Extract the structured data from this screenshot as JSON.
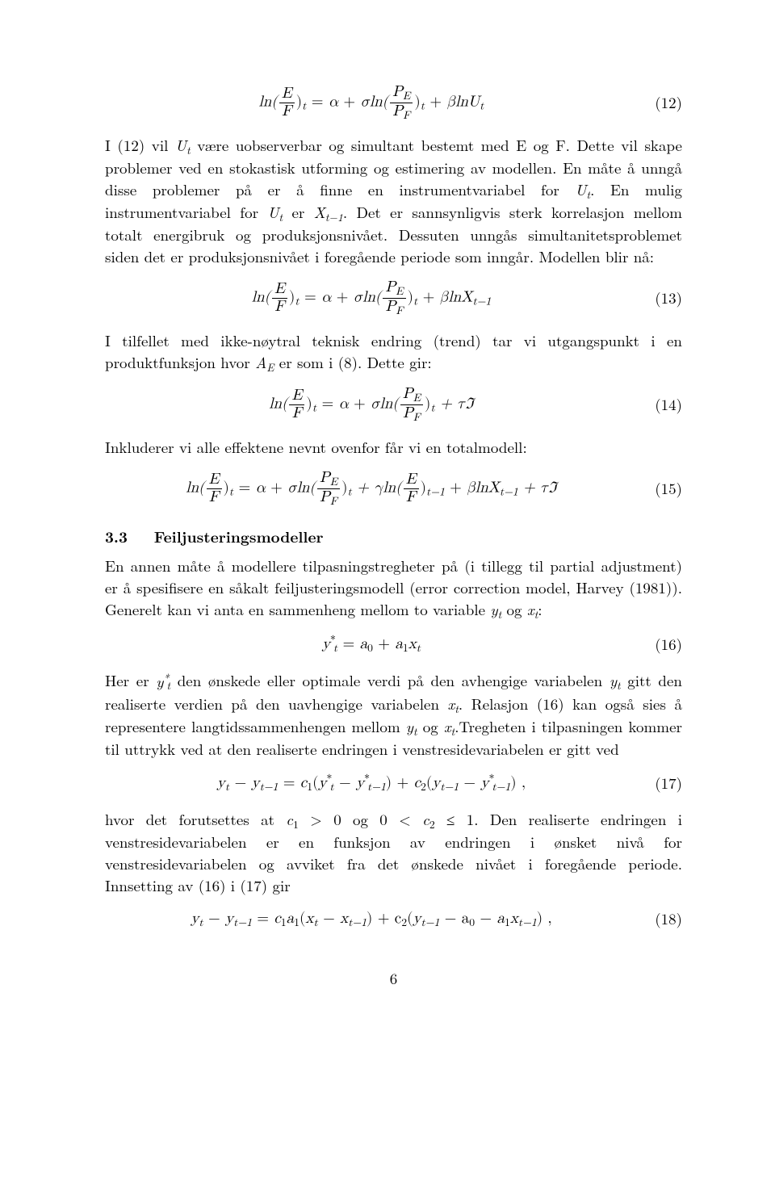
{
  "equations": {
    "eq12": {
      "number": "(12)",
      "lhs_fn": "ln(",
      "frac1_num": "E",
      "frac1_den": "F",
      "close_sub_t": ")",
      "eq_sign": " = ",
      "alpha": "α",
      "plus1": " + ",
      "sigma_ln": "σln(",
      "frac2_num_P": "P",
      "frac2_num_sub": "E",
      "frac2_den_P": "P",
      "frac2_den_sub": "F",
      "plus2": " + ",
      "beta_ln_U": "βlnU",
      "sub_t": "t"
    },
    "eq13": {
      "number": "(13)",
      "beta_ln_X": "βlnX",
      "sub_tminus1": "t−1"
    },
    "eq14": {
      "number": "(14)",
      "plus_tau_im": " + τℑ"
    },
    "eq15": {
      "number": "(15)",
      "gamma_ln": " + γln("
    },
    "eq16": {
      "number": "(16)",
      "body_lhs_y": "y",
      "star": "*",
      "eq_sign": " = ",
      "a0": "a",
      "sub0": "0",
      "plus": " + ",
      "a1": "a",
      "sub1": "1",
      "x_t": "x",
      "sub_t": "t"
    },
    "eq17": {
      "number": "(17)",
      "y_t": "y",
      "minus1": " − ",
      "y_tminus1": "y",
      "eq_sign": " = ",
      "c1": "c",
      "lpar": "(",
      "rpar_plus_c2": ") + ",
      "c2": "c",
      "space_comma": " ,"
    },
    "eq18": {
      "number": "(18)",
      "rhs_prefix": "c",
      "a1": "a",
      "lpar": "(",
      "x_t": "x",
      "minus": " − ",
      "x_tminus1": "x",
      "rpar_plus_c2_lpar": ") + c",
      "y_tminus1": "y",
      "minus_a0_minus_a1": " − a",
      "rpar_comma": ") ,"
    }
  },
  "paragraphs": {
    "p1_a": "I (12) vil ",
    "p1_Ut": "U",
    "p1_b": " være uobserverbar og simultant bestemt med E og F. Dette vil skape problemer ved en stokastisk utforming og estimering av modellen. En måte å unngå disse problemer på er å finne en instrumentvariabel for ",
    "p1_c": ". En mulig instrumentvariabel for ",
    "p1_d": " er ",
    "p1_Xtminus1": "X",
    "p1_e": ". Det er sannsynligvis sterk korrelasjon mellom totalt energibruk og produksjonsnivået. Dessuten unngås simultanitetsproblemet siden det er produksjonsnivået i foregående periode som inngår. Modellen blir nå:",
    "p2_a": "I tilfellet med ikke-nøytral teknisk endring (trend) tar vi utgangspunkt i en produktfunksjon hvor ",
    "p2_AE": "A",
    "p2_sub_E": "E",
    "p2_b": " er som i (8). Dette gir:",
    "p3": "Inkluderer vi alle effektene nevnt ovenfor får vi en totalmodell:",
    "section_num": "3.3",
    "section_title": "Feiljusteringsmodeller",
    "p4_a": "En annen måte å modellere tilpasningstregheter på (i tillegg til partial adjustment) er å spesifisere en såkalt feiljusteringsmodell (error correction model, Harvey (1981)). Generelt kan vi anta en sammenheng mellom to variable ",
    "p4_yt": "y",
    "p4_og": " og ",
    "p4_xt": "x",
    "p4_colon": ":",
    "p5_a": "Her er ",
    "p5_b": " den ønskede eller optimale verdi på den avhengige variabelen ",
    "p5_c": " gitt den realiserte verdien på den uavhengige variabelen ",
    "p5_d": ". Relasjon (16) kan også sies å representere langtidssammenhengen mellom ",
    "p5_e": " og ",
    "p5_f": ".Tregheten i tilpasningen kommer til uttrykk ved at den realiserte endringen i venstresidevariabelen er gitt ved",
    "p6_a": "hvor det forutsettes at ",
    "p6_c1": "c",
    "p6_gt0_og": " > 0 og 0 < ",
    "p6_c2": "c",
    "p6_b": " ≤ 1. Den realiserte endringen i venstresidevariabelen er en funksjon av endringen i ønsket nivå for venstresidevariabelen og avviket fra det ønskede nivået i foregående periode. Innsetting av (16) i (17) gir"
  },
  "page_number": "6",
  "subs": {
    "t": "t",
    "tminus1": "t−1",
    "zero": "0",
    "one": "1",
    "two": "2",
    "E": "E",
    "F": "F"
  }
}
